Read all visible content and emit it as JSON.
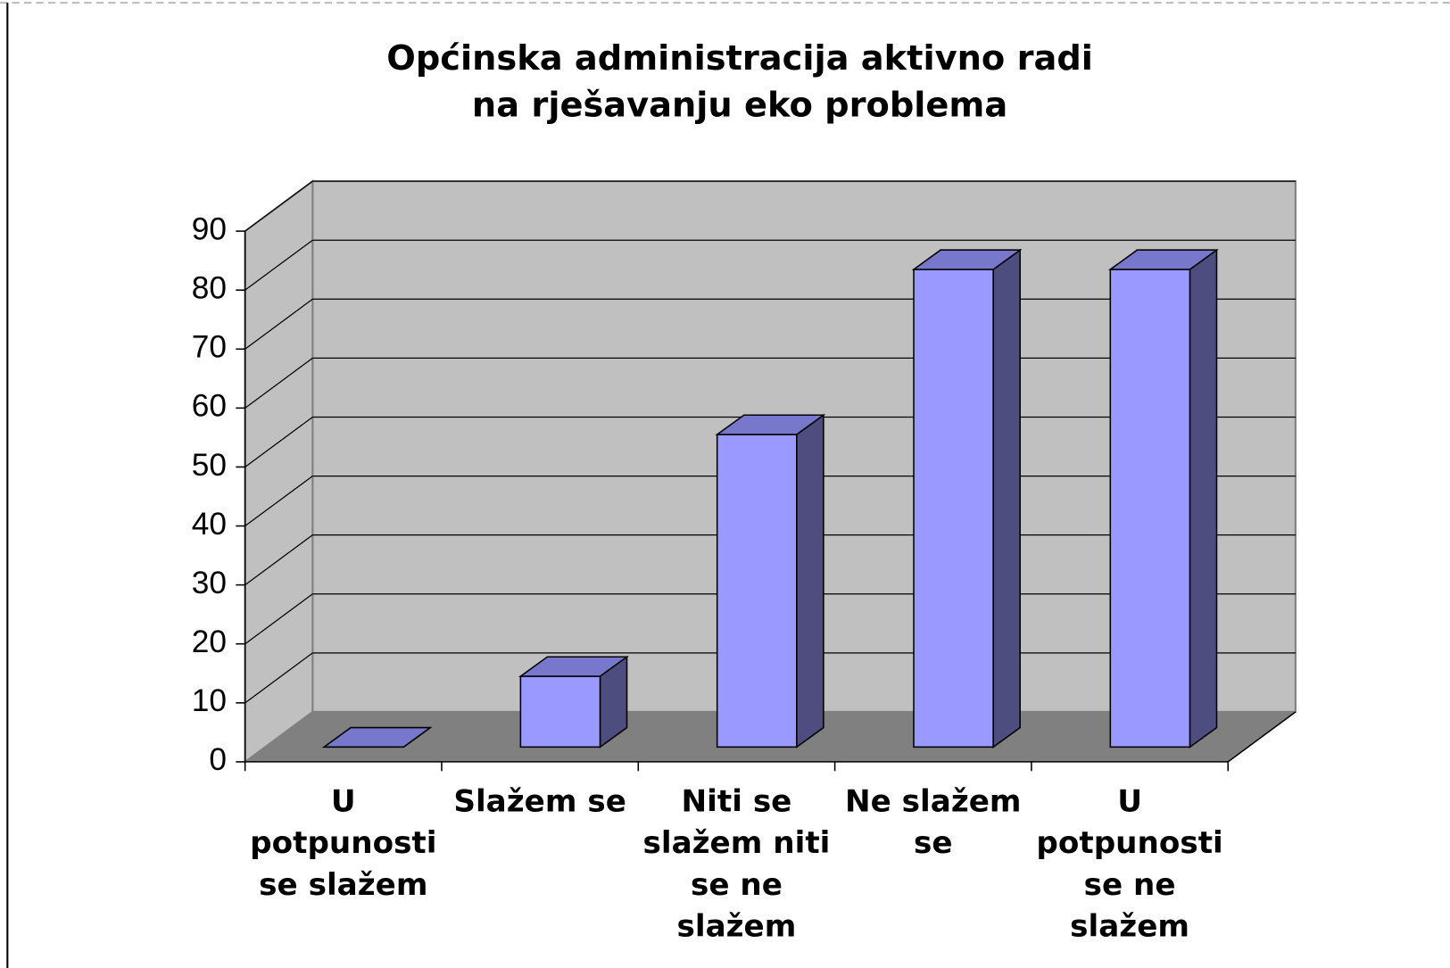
{
  "chart_data": {
    "type": "bar",
    "title": [
      "Općinska administracija aktivno radi",
      "na rješavanju eko problema"
    ],
    "categories": [
      "U potpunosti se slažem",
      "Slažem se",
      "Niti se slažem niti se ne slažem",
      "Ne slažem se",
      "U potpunosti se ne slažem"
    ],
    "values": [
      0,
      12,
      53,
      81,
      81
    ],
    "color": "#9999ff",
    "ylim": [
      0,
      90
    ],
    "yticks": [
      0,
      10,
      20,
      30,
      40,
      50,
      60,
      70,
      80,
      90
    ],
    "grid": true
  }
}
